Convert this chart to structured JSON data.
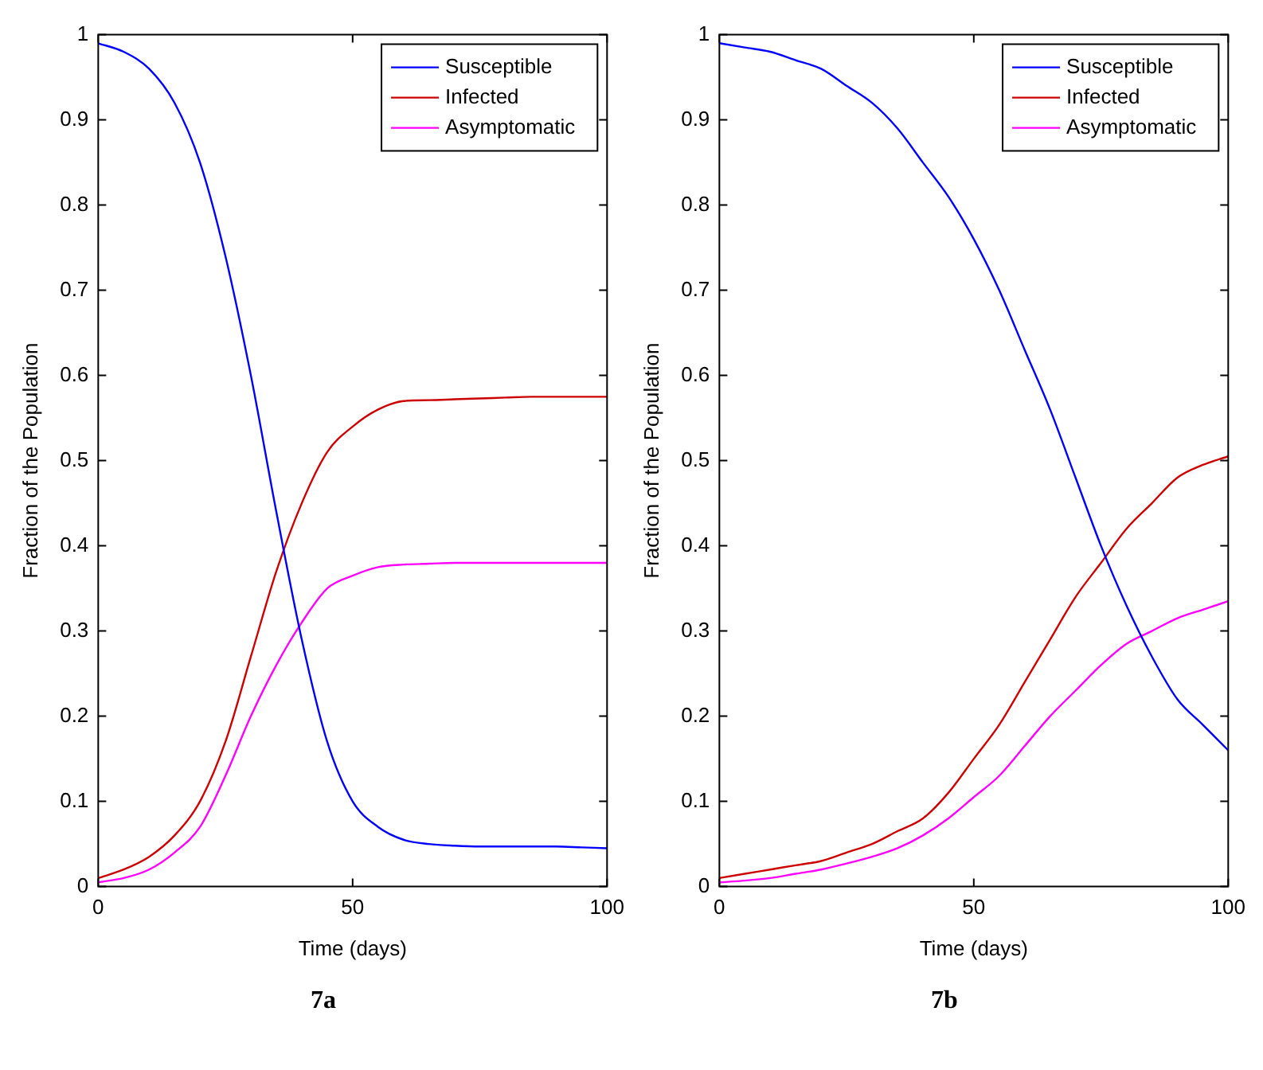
{
  "chart_data": [
    {
      "type": "line",
      "title": "7a",
      "xlabel": "Time (days)",
      "ylabel": "Fraction of the Population",
      "x": [
        0,
        5,
        10,
        15,
        20,
        25,
        30,
        35,
        40,
        45,
        50,
        55,
        60,
        65,
        70,
        75,
        80,
        85,
        90,
        95,
        100
      ],
      "xlim": [
        0,
        100
      ],
      "xticks": [
        0,
        50,
        100
      ],
      "ylim": [
        0,
        1
      ],
      "yticks": [
        0,
        0.1,
        0.2,
        0.3,
        0.4,
        0.5,
        0.6,
        0.7,
        0.8,
        0.9,
        1
      ],
      "legend": "top right",
      "series": [
        {
          "name": "Susceptible",
          "color": "#0000ff",
          "values": [
            0.99,
            0.98,
            0.96,
            0.92,
            0.85,
            0.74,
            0.6,
            0.44,
            0.29,
            0.17,
            0.1,
            0.07,
            0.055,
            0.05,
            0.048,
            0.047,
            0.047,
            0.047,
            0.047,
            0.046,
            0.045
          ]
        },
        {
          "name": "Infected",
          "color": "#cc0000",
          "values": [
            0.01,
            0.02,
            0.035,
            0.06,
            0.1,
            0.17,
            0.27,
            0.37,
            0.45,
            0.51,
            0.54,
            0.56,
            0.57,
            0.571,
            0.572,
            0.573,
            0.574,
            0.575,
            0.575,
            0.575,
            0.575
          ]
        },
        {
          "name": "Asymptomatic",
          "color": "#ff00ff",
          "values": [
            0.005,
            0.01,
            0.02,
            0.04,
            0.07,
            0.13,
            0.2,
            0.26,
            0.31,
            0.35,
            0.365,
            0.375,
            0.378,
            0.379,
            0.38,
            0.38,
            0.38,
            0.38,
            0.38,
            0.38,
            0.38
          ]
        }
      ]
    },
    {
      "type": "line",
      "title": "7b",
      "xlabel": "Time (days)",
      "ylabel": "Fraction of the Population",
      "x": [
        0,
        5,
        10,
        15,
        20,
        25,
        30,
        35,
        40,
        45,
        50,
        55,
        60,
        65,
        70,
        75,
        80,
        85,
        90,
        95,
        100
      ],
      "xlim": [
        0,
        100
      ],
      "xticks": [
        0,
        50,
        100
      ],
      "ylim": [
        0,
        1
      ],
      "yticks": [
        0,
        0.1,
        0.2,
        0.3,
        0.4,
        0.5,
        0.6,
        0.7,
        0.8,
        0.9,
        1
      ],
      "legend": "top right",
      "series": [
        {
          "name": "Susceptible",
          "color": "#0000ff",
          "values": [
            0.99,
            0.985,
            0.98,
            0.97,
            0.96,
            0.94,
            0.92,
            0.89,
            0.85,
            0.81,
            0.76,
            0.7,
            0.63,
            0.56,
            0.48,
            0.4,
            0.33,
            0.27,
            0.22,
            0.19,
            0.16
          ]
        },
        {
          "name": "Infected",
          "color": "#cc0000",
          "values": [
            0.01,
            0.015,
            0.02,
            0.025,
            0.03,
            0.04,
            0.05,
            0.065,
            0.08,
            0.11,
            0.15,
            0.19,
            0.24,
            0.29,
            0.34,
            0.38,
            0.42,
            0.45,
            0.48,
            0.495,
            0.505
          ]
        },
        {
          "name": "Asymptomatic",
          "color": "#ff00ff",
          "values": [
            0.005,
            0.007,
            0.01,
            0.015,
            0.02,
            0.027,
            0.035,
            0.045,
            0.06,
            0.08,
            0.105,
            0.13,
            0.165,
            0.2,
            0.23,
            0.26,
            0.285,
            0.3,
            0.315,
            0.325,
            0.335
          ]
        }
      ]
    }
  ]
}
